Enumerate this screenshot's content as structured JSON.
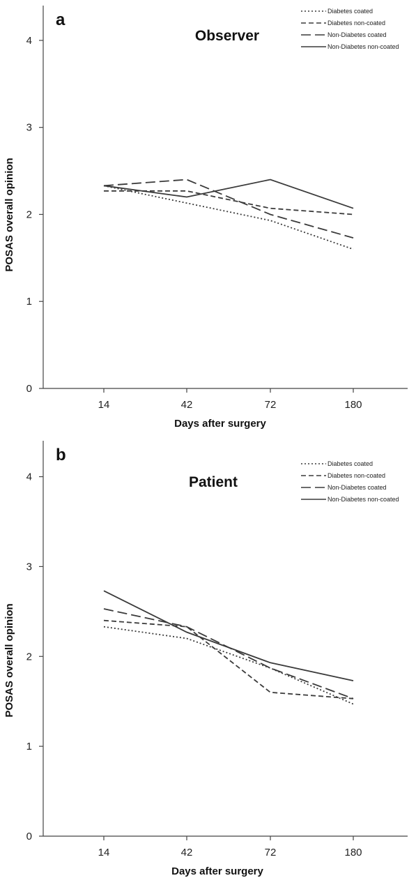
{
  "chart_data": [
    {
      "type": "line",
      "panel_label": "a",
      "title": "Observer",
      "xlabel": "Days after surgery",
      "ylabel": "POSAS overall opinion",
      "categories": [
        "14",
        "42",
        "72",
        "180"
      ],
      "ylim": [
        0,
        4.4
      ],
      "yticks": [
        "0",
        "1",
        "2",
        "3",
        "4"
      ],
      "grid": false,
      "legend_position": "top-right",
      "series": [
        {
          "name": "Diabetes  coated",
          "dash": "dotted",
          "values": [
            2.33,
            2.13,
            1.93,
            1.6
          ]
        },
        {
          "name": "Diabetes  non-coated",
          "dash": "short-dash",
          "values": [
            2.27,
            2.27,
            2.07,
            2.0
          ]
        },
        {
          "name": "Non-Diabetes  coated",
          "dash": "long-dash",
          "values": [
            2.33,
            2.4,
            2.0,
            1.73
          ]
        },
        {
          "name": "Non-Diabetes  non-coated",
          "dash": "solid",
          "values": [
            2.33,
            2.2,
            2.4,
            2.07
          ]
        }
      ]
    },
    {
      "type": "line",
      "panel_label": "b",
      "title": "Patient",
      "xlabel": "Days after surgery",
      "ylabel": "POSAS overall opinion",
      "categories": [
        "14",
        "42",
        "72",
        "180"
      ],
      "ylim": [
        0,
        4.4
      ],
      "yticks": [
        "0",
        "1",
        "2",
        "3",
        "4"
      ],
      "grid": false,
      "legend_position": "top-right",
      "series": [
        {
          "name": "Diabetes  coated",
          "dash": "dotted",
          "values": [
            2.33,
            2.2,
            1.87,
            1.47
          ]
        },
        {
          "name": "Diabetes  non-coated",
          "dash": "short-dash",
          "values": [
            2.4,
            2.33,
            1.6,
            1.53
          ]
        },
        {
          "name": "Non-Diabetes  coated",
          "dash": "long-dash",
          "values": [
            2.53,
            2.33,
            1.87,
            1.53
          ]
        },
        {
          "name": "Non-Diabetes  non-coated",
          "dash": "solid",
          "values": [
            2.73,
            2.27,
            1.93,
            1.73
          ]
        }
      ]
    }
  ]
}
